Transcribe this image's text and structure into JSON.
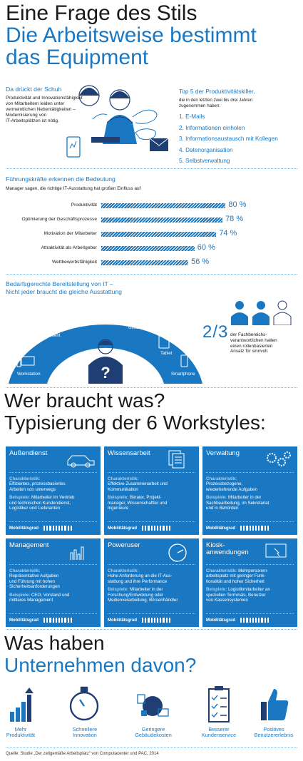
{
  "header": {
    "line1": "Eine Frage des Stils",
    "line2": "Die Arbeitsweise bestimmt",
    "line3": "das Equipment"
  },
  "schuh": {
    "title": "Da drückt der Schuh",
    "text": [
      "Produktivität und Innovationsfähigkeit",
      "von Mitarbeitern leiden unter",
      "vermeintlichen Nebentätigkeiten –",
      "Modernisierung von",
      "IT-Arbeitsplätzen ist nötig."
    ]
  },
  "killers": {
    "title": "Top 5 der Produktivitätskiller,",
    "subtitle": [
      "die in den letzten zwei bis drei Jahren",
      "zugenommen haben:"
    ],
    "items": [
      "1. E-Mails",
      "2. Informationen einholen",
      "3. Informationsaustausch mit Kollegen",
      "4. Datenorganisation",
      "5. Selbstverwaltung"
    ]
  },
  "chart_data": {
    "type": "bar",
    "title": "Führungskräfte erkennen die Bedeutung",
    "subtitle": "Manager sagen, die richtige IT-Ausstattung hat großen Einfluss auf",
    "categories": [
      "Produktivität",
      "Optimierung der Geschäftsprozesse",
      "Motivation der Mitarbeiter",
      "Attraktivität als Arbeitgeber",
      "Wettbewerbsfähigkeit"
    ],
    "values": [
      80,
      78,
      74,
      60,
      56
    ],
    "value_labels": [
      "80 %",
      "78 %",
      "74 %",
      "60 %",
      "56 %"
    ],
    "xlim": [
      0,
      100
    ],
    "color": "#1a78c2"
  },
  "bedarf": {
    "title": [
      "Bedarfsgerechte Bereitstellung von IT –",
      "Nicht jeder braucht die gleiche Ausstattung"
    ],
    "devices": [
      "Laptop",
      "Convertible",
      "Thin Client",
      "Ultrabook",
      "Tablet",
      "Workstation",
      "Smartphone"
    ],
    "question": "?",
    "fraction": "2/3",
    "fraction_text": [
      "der Fachbereichs-",
      "verantwortlichen halten",
      "einen rollenbasierten",
      "Ansatz für sinnvoll."
    ]
  },
  "workstyles_title": [
    "Wer braucht was?",
    "Typisierung der 6 Workstyles:"
  ],
  "cards": [
    {
      "title": "Außendienst",
      "char_label": "Charakteristik:",
      "char": [
        "Effizientes, prozessbasiertes",
        "Arbeiten von unterwegs"
      ],
      "ex_label": "Beispiele:",
      "ex": [
        " Mitarbeiter im Vertrieb",
        "und technischen Kundendienst,",
        "Logistiker und Lieferanten"
      ],
      "mob_label": "Mobilitätsgrad",
      "mobility": 10,
      "icon": "car-icon"
    },
    {
      "title": "Wissensarbeit",
      "char_label": "Charakteristik:",
      "char": [
        "Effektive Zusammenarbeit und",
        "Kommunikation"
      ],
      "ex_label": "Beispiele:",
      "ex": [
        " Berater, Projekt-",
        "manager, Wissenschaftler und",
        "Ingenieure"
      ],
      "mob_label": "Mobilitätsgrad",
      "mobility": 10,
      "icon": "documents-icon"
    },
    {
      "title": "Verwaltung",
      "char_label": "Charakteristik:",
      "char": [
        "Prozessbezogene,",
        "wiederkehrende Aufgaben"
      ],
      "ex_label": "Beispiele:",
      "ex": [
        " Mitarbeiter in der",
        "Sachbearbeitung, im Sekretariat",
        "und in Behörden"
      ],
      "mob_label": "Mobilitätsgrad",
      "mobility": 10,
      "icon": "gears-icon"
    },
    {
      "title": "Management",
      "char_label": "Charakteristik:",
      "char": [
        "Repräsentative Aufgaben",
        "und Führung mit hohen",
        "Sicherheitsanforderungen"
      ],
      "ex_label": "Beispiele:",
      "ex": [
        " CEO, Vorstand und",
        "mittleres Management"
      ],
      "mob_label": "Mobilitätsgrad",
      "mobility": 10,
      "icon": "bar-chart-icon"
    },
    {
      "title": "Poweruser",
      "char_label": "Charakteristik:",
      "char": [
        "Hohe Anforderung an die IT-Aus-",
        "stattung und ihre Performance"
      ],
      "ex_label": "Beispiele:",
      "ex": [
        " Mitarbeiter in der",
        "Forschung/Entwicklung oder",
        "Medienverarbeitung, Börsenhändler"
      ],
      "mob_label": "Mobilitätsgrad",
      "mobility": 10,
      "icon": "gauge-icon"
    },
    {
      "title": "Kiosk-\nanwendungen",
      "char_label": "Charakteristik:",
      "char": [
        " Mehrpersonen-",
        "arbeitsplatz mit geringer Funk-",
        "tionalität und hoher Sicherheit"
      ],
      "ex_label": "Beispiele:",
      "ex": [
        " Logistikmitarbeiter an",
        "speziellen Terminals, Benutzer",
        "von Kassensystemen"
      ],
      "mob_label": "Mobilitätsgrad",
      "mobility": 10,
      "icon": "touchscreen-icon"
    }
  ],
  "benefits_title": [
    "Was haben",
    "Unternehmen davon?"
  ],
  "benefits": [
    {
      "label": [
        "Mehr",
        "Produktivität"
      ],
      "icon": "growth-chart-icon"
    },
    {
      "label": [
        "Schnellere",
        "Innovation"
      ],
      "icon": "stopwatch-icon"
    },
    {
      "label": [
        "Geringere",
        "Gebäudekosten"
      ],
      "icon": "workplace-icon"
    },
    {
      "label": [
        "Besserer",
        "Kundenservice"
      ],
      "icon": "checklist-icon"
    },
    {
      "label": [
        "Positives",
        "Benutzererlebnis"
      ],
      "icon": "thumbs-up-icon"
    }
  ],
  "source": "Quelle: Studie „Der zeitgemäße Arbeitsplatz“ von Computacenter und PAC, 2014",
  "colors": {
    "accent": "#1a78c2",
    "dark": "#1f3e73"
  }
}
